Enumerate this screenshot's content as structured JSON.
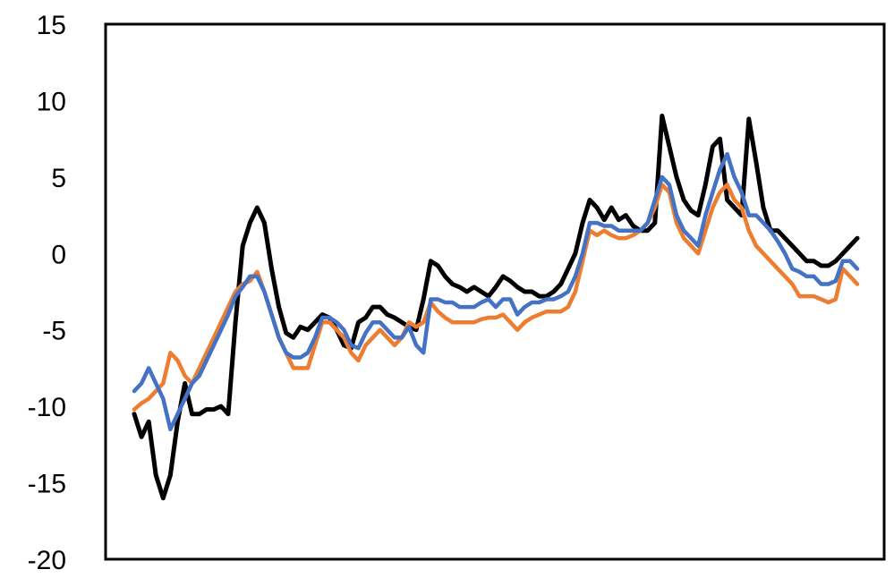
{
  "chart_data": {
    "type": "line",
    "title": "",
    "xlabel": "",
    "ylabel": "",
    "ylim": [
      -20,
      15
    ],
    "yticks": [
      15,
      10,
      5,
      0,
      -5,
      -10,
      -15,
      -20
    ],
    "grid": false,
    "x": [
      0,
      0.01,
      0.02,
      0.03,
      0.04,
      0.05,
      0.06,
      0.07,
      0.08,
      0.09,
      0.1,
      0.11,
      0.12,
      0.13,
      0.14,
      0.15,
      0.16,
      0.17,
      0.18,
      0.19,
      0.2,
      0.21,
      0.22,
      0.23,
      0.24,
      0.25,
      0.26,
      0.27,
      0.28,
      0.29,
      0.3,
      0.31,
      0.32,
      0.33,
      0.34,
      0.35,
      0.36,
      0.37,
      0.38,
      0.39,
      0.4,
      0.41,
      0.42,
      0.43,
      0.44,
      0.45,
      0.46,
      0.47,
      0.48,
      0.49,
      0.5,
      0.51,
      0.52,
      0.53,
      0.54,
      0.55,
      0.56,
      0.57,
      0.58,
      0.59,
      0.6,
      0.61,
      0.62,
      0.63,
      0.64,
      0.65,
      0.66,
      0.67,
      0.68,
      0.69,
      0.7,
      0.71,
      0.72,
      0.73,
      0.74,
      0.75,
      0.76,
      0.77,
      0.78,
      0.79,
      0.8,
      0.81,
      0.82,
      0.83,
      0.84,
      0.85,
      0.86,
      0.87,
      0.88,
      0.89,
      0.9,
      0.91,
      0.92,
      0.93,
      0.94,
      0.95,
      0.96,
      0.97,
      0.98,
      0.99,
      1.0
    ],
    "series": [
      {
        "color": "#000000",
        "values": [
          -10.5,
          -12,
          -11,
          -14.5,
          -16,
          -14.5,
          -11,
          -8.5,
          -10.5,
          -10.5,
          -10.2,
          -10.2,
          -10,
          -10.5,
          -4.5,
          0.5,
          2,
          3,
          2,
          -1,
          -3.5,
          -5.2,
          -5.5,
          -4.8,
          -5,
          -4.5,
          -4,
          -4.2,
          -5,
          -6,
          -6.2,
          -4.5,
          -4.2,
          -3.5,
          -3.5,
          -4,
          -4.2,
          -4.5,
          -4.8,
          -5,
          -3,
          -0.5,
          -0.8,
          -1.5,
          -2,
          -2.2,
          -2.5,
          -2.2,
          -2.5,
          -2.8,
          -2.2,
          -1.5,
          -1.8,
          -2.2,
          -2.5,
          -2.5,
          -2.8,
          -2.8,
          -2.5,
          -2,
          -1,
          0,
          2,
          3.5,
          3,
          2.2,
          3,
          2.2,
          2.5,
          1.8,
          1.5,
          1.5,
          2,
          9,
          7,
          5,
          3.5,
          2.8,
          2.5,
          4.5,
          7,
          7.5,
          3.5,
          3,
          2.5,
          8.8,
          6,
          3,
          1.5,
          1.5,
          1,
          0.5,
          0,
          -0.5,
          -0.5,
          -0.8,
          -0.8,
          -0.5,
          0,
          0.5,
          1
        ]
      },
      {
        "color": "#ED7D31",
        "values": [
          -10.2,
          -9.8,
          -9.5,
          -9,
          -8.5,
          -6.5,
          -7,
          -8,
          -8.5,
          -7.5,
          -6.5,
          -5.5,
          -4.5,
          -3.5,
          -2.5,
          -2,
          -1.8,
          -1.2,
          -2.5,
          -4,
          -5.5,
          -6.5,
          -7.5,
          -7.5,
          -7.5,
          -6,
          -4.5,
          -4.5,
          -5,
          -5.5,
          -6.5,
          -7,
          -6,
          -5.5,
          -5,
          -5.5,
          -6,
          -5.5,
          -4.5,
          -4.8,
          -4.5,
          -3.2,
          -3.8,
          -4.2,
          -4.5,
          -4.5,
          -4.5,
          -4.5,
          -4.3,
          -4.2,
          -4.2,
          -4,
          -4.5,
          -5,
          -4.5,
          -4.2,
          -4,
          -3.8,
          -3.8,
          -3.8,
          -3.5,
          -2.5,
          -0.5,
          1.5,
          1.2,
          1.5,
          1.2,
          1,
          1,
          1.2,
          1.5,
          2,
          3,
          4.5,
          4,
          2,
          1,
          0.5,
          0,
          1.5,
          3,
          4,
          4.5,
          3.5,
          3,
          1.5,
          0.5,
          0,
          -0.5,
          -1,
          -1.5,
          -2,
          -2.8,
          -2.8,
          -2.8,
          -3,
          -3.2,
          -3,
          -1,
          -1.5,
          -2
        ]
      },
      {
        "color": "#4472C4",
        "values": [
          -9,
          -8.5,
          -7.5,
          -8.5,
          -9.5,
          -11.5,
          -10.5,
          -9.5,
          -8.5,
          -8,
          -7,
          -6,
          -5,
          -4,
          -2.8,
          -2.2,
          -1.5,
          -1.5,
          -2.5,
          -4,
          -5.5,
          -6.5,
          -6.8,
          -6.8,
          -6.5,
          -5.5,
          -4.2,
          -4.2,
          -4.5,
          -5,
          -6,
          -6.2,
          -5.2,
          -4.5,
          -4.5,
          -5,
          -5.5,
          -5.5,
          -4.8,
          -6,
          -6.5,
          -3,
          -3,
          -3.2,
          -3.2,
          -3.5,
          -3.5,
          -3.5,
          -3.2,
          -3,
          -3.5,
          -3,
          -3,
          -4,
          -3.5,
          -3.2,
          -3.2,
          -3,
          -3,
          -2.8,
          -2.5,
          -1.5,
          0,
          2,
          2,
          1.8,
          1.8,
          1.5,
          1.5,
          1.5,
          1.5,
          2,
          3.5,
          5,
          4.5,
          2.5,
          1.5,
          1,
          0.5,
          2.5,
          4,
          5.5,
          6.5,
          5,
          4,
          2.5,
          2.5,
          2,
          1.5,
          0.8,
          0,
          -1,
          -1.2,
          -1.5,
          -1.5,
          -2,
          -2,
          -1.8,
          -0.5,
          -0.5,
          -1
        ]
      }
    ]
  }
}
